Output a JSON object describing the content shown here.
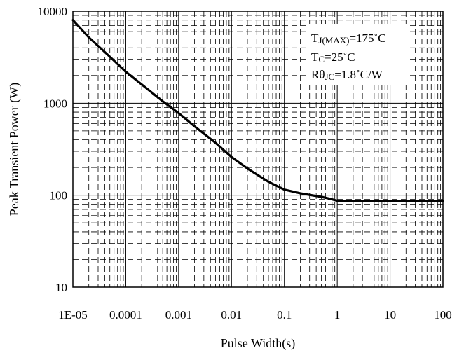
{
  "chart_data": {
    "type": "line",
    "xlabel": "Pulse Width(s)",
    "ylabel": "Peak Transient Power (W)",
    "x_scale": "log",
    "y_scale": "log",
    "xlim": [
      1e-05,
      100
    ],
    "ylim": [
      10,
      10000
    ],
    "x_ticks": [
      "1E-05",
      "0.0001",
      "0.001",
      "0.01",
      "0.1",
      "1",
      "10",
      "100"
    ],
    "x_tick_values": [
      1e-05,
      0.0001,
      0.001,
      0.01,
      0.1,
      1,
      10,
      100
    ],
    "y_ticks": [
      "10",
      "100",
      "1000",
      "10000"
    ],
    "y_tick_values": [
      10,
      100,
      1000,
      10000
    ],
    "grid": true,
    "series": [
      {
        "x": [
          1e-05,
          2e-05,
          5e-05,
          0.0001,
          0.0002,
          0.0005,
          0.001,
          0.002,
          0.005,
          0.01,
          0.02,
          0.05,
          0.1,
          0.2,
          0.5,
          0.7,
          1,
          2,
          5,
          10,
          20,
          50,
          100
        ],
        "y": [
          8000,
          5200,
          3200,
          2200,
          1600,
          1050,
          780,
          560,
          370,
          260,
          195,
          140,
          115,
          105,
          96,
          92,
          87,
          86,
          86,
          86,
          86,
          86,
          86
        ],
        "color": "#000000"
      }
    ],
    "annotations": [
      {
        "base": "T",
        "sub": "J(MAX)",
        "rest": "=175˚C"
      },
      {
        "base": "T",
        "sub": "C",
        "rest": "=25˚C"
      },
      {
        "base": "Rθ",
        "sub": "JC",
        "rest": "=1.8˚C/W"
      }
    ]
  }
}
